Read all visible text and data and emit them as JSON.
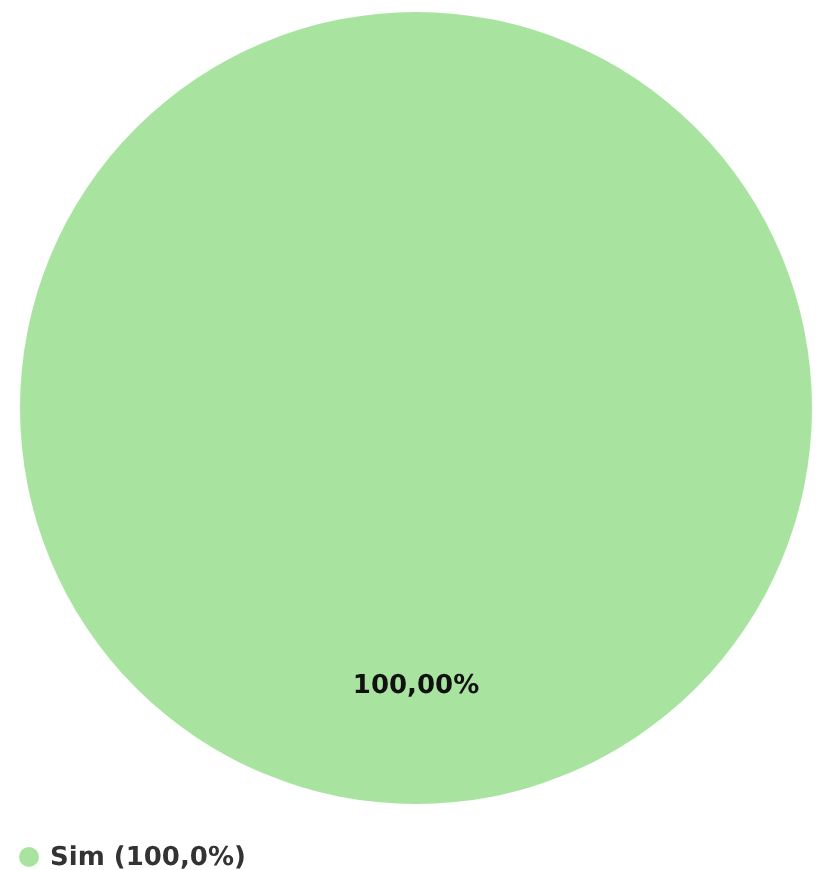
{
  "chart_data": {
    "type": "pie",
    "categories": [
      "Sim (100,0%)"
    ],
    "values": [
      100
    ],
    "colors": [
      "#a8e4a0"
    ],
    "value_labels": [
      "100,00%"
    ],
    "legend": "bottom"
  }
}
